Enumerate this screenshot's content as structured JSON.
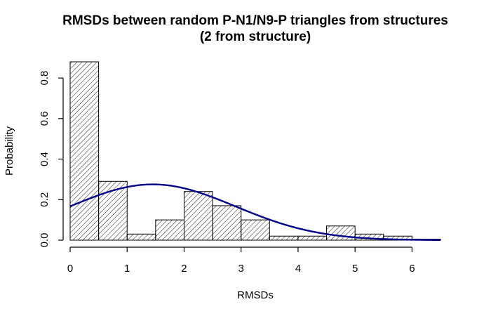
{
  "chart_data": {
    "type": "bar",
    "title": "RMSDs between random P-N1/N9-P triangles from structures",
    "subtitle": "(2 from structure)",
    "xlabel": "RMSDs",
    "ylabel": "Probability",
    "bin_width": 0.5,
    "bins": [
      {
        "x0": 0.0,
        "x1": 0.5,
        "value": 0.88
      },
      {
        "x0": 0.5,
        "x1": 1.0,
        "value": 0.29
      },
      {
        "x0": 1.0,
        "x1": 1.5,
        "value": 0.03
      },
      {
        "x0": 1.5,
        "x1": 2.0,
        "value": 0.1
      },
      {
        "x0": 2.0,
        "x1": 2.5,
        "value": 0.24
      },
      {
        "x0": 2.5,
        "x1": 3.0,
        "value": 0.17
      },
      {
        "x0": 3.0,
        "x1": 3.5,
        "value": 0.1
      },
      {
        "x0": 3.5,
        "x1": 4.0,
        "value": 0.02
      },
      {
        "x0": 4.0,
        "x1": 4.5,
        "value": 0.02
      },
      {
        "x0": 4.5,
        "x1": 5.0,
        "value": 0.07
      },
      {
        "x0": 5.0,
        "x1": 5.5,
        "value": 0.03
      },
      {
        "x0": 5.5,
        "x1": 6.0,
        "value": 0.02
      },
      {
        "x0": 6.0,
        "x1": 6.5,
        "value": 0.005
      }
    ],
    "density_curve": {
      "distribution": "normal",
      "mean": 1.45,
      "sd": 1.45,
      "color": "#00008b"
    },
    "xlim": [
      0,
      6.5
    ],
    "ylim": [
      0,
      0.88
    ],
    "x_ticks": [
      0,
      1,
      2,
      3,
      4,
      5,
      6
    ],
    "y_ticks": [
      0.0,
      0.2,
      0.4,
      0.6,
      0.8
    ],
    "x_tick_labels": [
      "0",
      "1",
      "2",
      "3",
      "4",
      "5",
      "6"
    ],
    "y_tick_labels": [
      "0.0",
      "0.2",
      "0.4",
      "0.6",
      "0.8"
    ],
    "fill_pattern": "diagonal-hatch",
    "grid": false
  }
}
